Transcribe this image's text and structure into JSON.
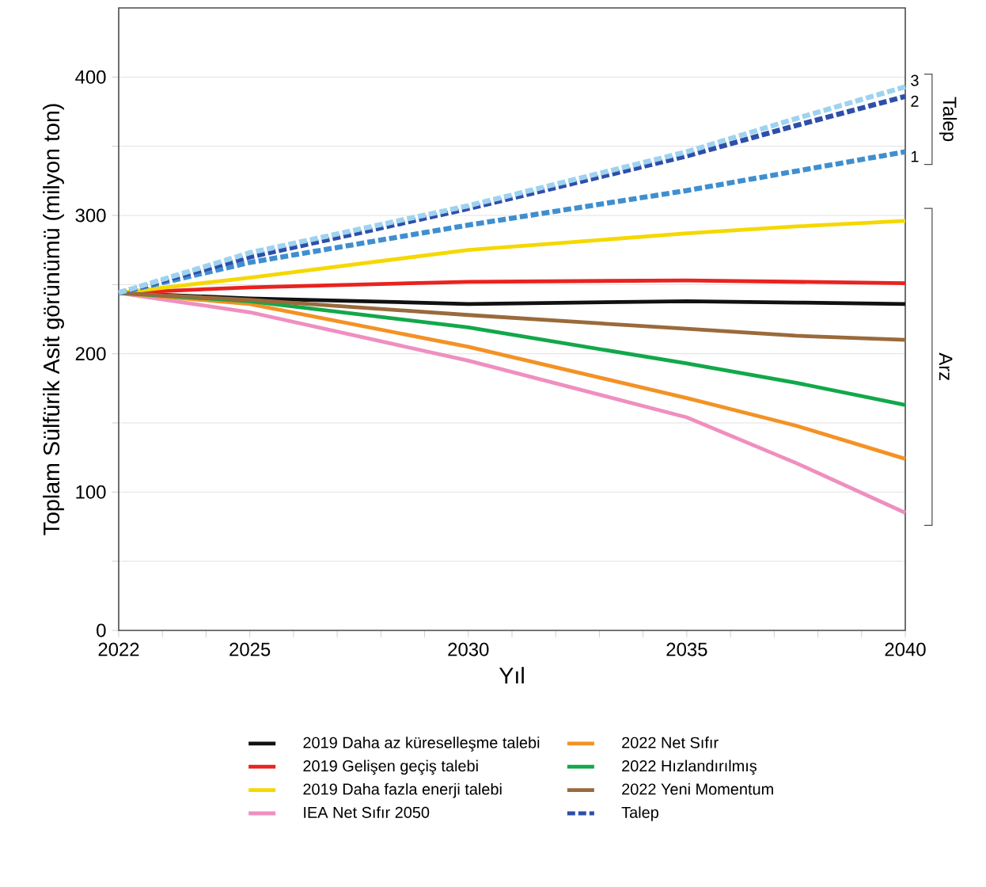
{
  "chart_data": {
    "type": "line",
    "xlabel": "Yıl",
    "ylabel": "Toplam Sülfürik Asit görünümü (milyon ton)",
    "xlim": [
      2022,
      2040
    ],
    "ylim": [
      0,
      450
    ],
    "xticks": [
      2022,
      {
        "value": 2023,
        "label": null
      },
      {
        "value": 2024,
        "label": null
      },
      2025,
      {
        "value": 2026,
        "label": null
      },
      {
        "value": 2027,
        "label": null
      },
      {
        "value": 2028,
        "label": null
      },
      {
        "value": 2029,
        "label": null
      },
      2030,
      {
        "value": 2031,
        "label": null
      },
      {
        "value": 2032,
        "label": null
      },
      {
        "value": 2033,
        "label": null
      },
      {
        "value": 2034,
        "label": null
      },
      2035,
      {
        "value": 2036,
        "label": null
      },
      {
        "value": 2037,
        "label": null
      },
      {
        "value": 2038,
        "label": null
      },
      {
        "value": 2039,
        "label": null
      },
      2040
    ],
    "yticks": [
      0,
      {
        "value": 50,
        "label": null
      },
      100,
      {
        "value": 150,
        "label": null
      },
      200,
      {
        "value": 250,
        "label": null
      },
      300,
      {
        "value": 350,
        "label": null
      },
      400
    ],
    "grid": "y",
    "legend": "bottom",
    "marker": "none",
    "x": [
      2022,
      2025,
      2030,
      2035,
      2037.5,
      2040
    ],
    "series": [
      {
        "name": "2019 Daha az küreselleşme talebi",
        "color": "#111111",
        "values": [
          244,
          240,
          236,
          238,
          237,
          236
        ]
      },
      {
        "name": "2019 Gelişen geçiş talebi",
        "color": "#e8231f",
        "values": [
          244,
          248,
          252,
          253,
          252,
          251
        ]
      },
      {
        "name": "2019 Daha fazla enerji talebi",
        "color": "#f5d800",
        "values": [
          244,
          255,
          275,
          287,
          292,
          296
        ]
      },
      {
        "name": "IEA Net Sıfır 2050",
        "color": "#ef8fc0",
        "values": [
          244,
          230,
          195,
          154,
          121,
          85
        ]
      },
      {
        "name": "2022 Net Sıfır",
        "color": "#f39225",
        "values": [
          244,
          236,
          205,
          168,
          148,
          124
        ]
      },
      {
        "name": "2022 Hızlandırılmış",
        "color": "#12a84a",
        "values": [
          244,
          238,
          219,
          193,
          179,
          163
        ]
      },
      {
        "name": "2022 Yeni Momentum",
        "color": "#9a6a3c",
        "values": [
          244,
          239,
          228,
          218,
          213,
          210
        ]
      },
      {
        "color": "#3f8fd0",
        "line_style": "dashed",
        "values": [
          244,
          266,
          293,
          318,
          332,
          346
        ]
      },
      {
        "name": "Talep",
        "color": "#2e4fa8",
        "line_style": "dashed",
        "values": [
          244,
          270,
          305,
          343,
          365,
          386
        ]
      },
      {
        "color": "#9dd3f0",
        "line_style": "dashed",
        "values": [
          244,
          273,
          307,
          346,
          370,
          393
        ]
      }
    ],
    "annotations": [
      "Talep",
      "Arz",
      "1",
      "2",
      "3"
    ]
  }
}
